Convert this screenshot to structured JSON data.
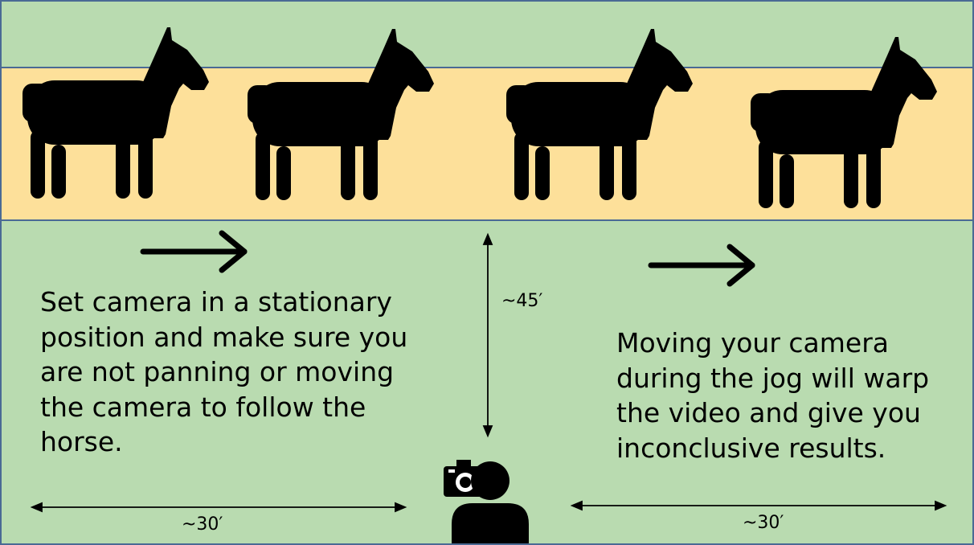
{
  "texts": {
    "left": "Set camera in a stationary position and make sure you are not panning or moving the camera to follow the horse.",
    "right": "Moving your camera during the jog will warp the video and give you inconclusive results."
  },
  "dimensions": {
    "left_width": "~30′",
    "right_width": "~30′",
    "distance_to_track": "~45′"
  },
  "icons": {
    "horses": [
      "horse-icon",
      "horse-icon",
      "horse-icon",
      "horse-icon"
    ],
    "camera": "camera-icon",
    "person": "person-icon",
    "direction": "arrow-right-icon"
  },
  "colors": {
    "field": "#b9dbb0",
    "track": "#fde09a",
    "border": "#4a6a94",
    "ink": "#000000"
  }
}
